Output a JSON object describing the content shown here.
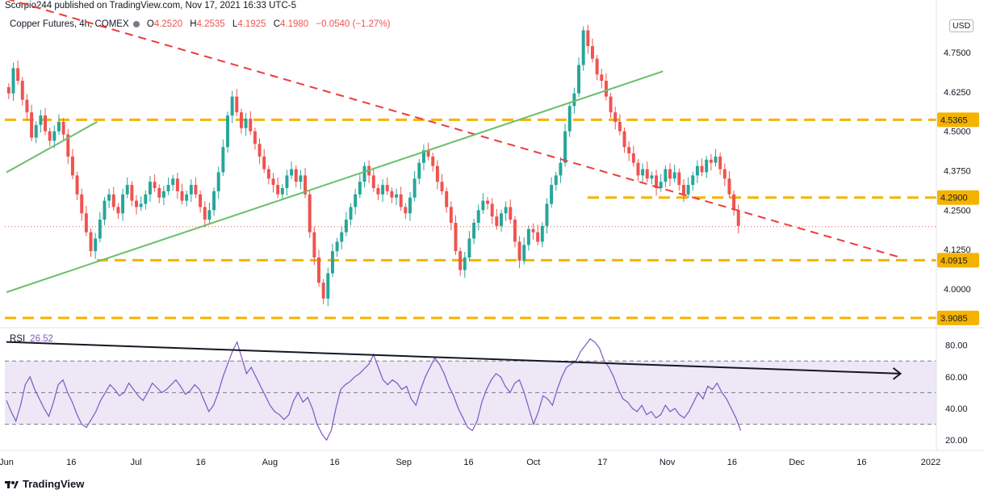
{
  "header": {
    "publisher_line": "Scorpio244 published on TradingView.com, Nov 17, 2021 16:33 UTC-5"
  },
  "legend": {
    "symbol": "Copper Futures, 4h, COMEX",
    "o_label": "O",
    "o_value": "4.2520",
    "h_label": "H",
    "h_value": "4.2535",
    "l_label": "L",
    "l_value": "4.1925",
    "c_label": "C",
    "c_value": "4.1980",
    "change": "−0.0540 (−1.27%)"
  },
  "currency": "USD",
  "rsi_legend": {
    "label": "RSI",
    "value": "26.52"
  },
  "brand": {
    "name": "TradingView"
  },
  "colors": {
    "up": "#26a69a",
    "down": "#ef5350",
    "support": "#f5b300",
    "trend_red": "#ef3b3b",
    "trend_green": "#6abf69",
    "rsi_line": "#7e57c2",
    "rsi_band": "#ede7f6"
  },
  "chart_data": [
    {
      "type": "candlestick",
      "title": "Copper Futures, 4h, COMEX",
      "x_ticks": [
        "Jun",
        "16",
        "Jul",
        "16",
        "Aug",
        "16",
        "Sep",
        "16",
        "Oct",
        "17",
        "Nov",
        "16",
        "Dec",
        "16",
        "2022"
      ],
      "y_ticks": [
        "4.7500",
        "4.6250",
        "4.5000",
        "4.3750",
        "4.2500",
        "4.1250",
        "4.0000"
      ],
      "ylim": [
        3.88,
        4.87
      ],
      "last_price": 4.198,
      "support_levels": [
        {
          "value": 4.5365,
          "label": "4.5365"
        },
        {
          "value": 4.29,
          "label": "4.2900"
        },
        {
          "value": 4.0915,
          "label": "4.0915"
        },
        {
          "value": 3.9085,
          "label": "3.9085"
        }
      ],
      "trendlines": [
        {
          "name": "descending",
          "from": [
            "Jun 1",
            4.92
          ],
          "to": [
            "Dec 25",
            4.1
          ]
        },
        {
          "name": "ascending",
          "from": [
            "Jun 1",
            3.99
          ],
          "to": [
            "Oct 31",
            4.69
          ]
        },
        {
          "name": "early-ascending",
          "from": [
            "Jun 1",
            4.37
          ],
          "to": [
            "Jun 22",
            4.53
          ]
        }
      ],
      "closes_approx": [
        4.62,
        4.7,
        4.66,
        4.6,
        4.56,
        4.48,
        4.52,
        4.55,
        4.5,
        4.47,
        4.5,
        4.53,
        4.49,
        4.42,
        4.36,
        4.3,
        4.24,
        4.18,
        4.12,
        4.16,
        4.22,
        4.28,
        4.3,
        4.26,
        4.24,
        4.3,
        4.33,
        4.28,
        4.26,
        4.27,
        4.3,
        4.34,
        4.32,
        4.29,
        4.31,
        4.33,
        4.35,
        4.31,
        4.28,
        4.3,
        4.33,
        4.3,
        4.26,
        4.22,
        4.25,
        4.31,
        4.37,
        4.45,
        4.55,
        4.61,
        4.56,
        4.51,
        4.54,
        4.5,
        4.46,
        4.42,
        4.38,
        4.35,
        4.33,
        4.3,
        4.32,
        4.36,
        4.38,
        4.34,
        4.36,
        4.3,
        4.18,
        4.1,
        4.02,
        3.97,
        4.05,
        4.12,
        4.15,
        4.18,
        4.22,
        4.26,
        4.3,
        4.34,
        4.39,
        4.36,
        4.32,
        4.3,
        4.33,
        4.31,
        4.29,
        4.3,
        4.26,
        4.24,
        4.29,
        4.35,
        4.4,
        4.44,
        4.42,
        4.39,
        4.34,
        4.31,
        4.26,
        4.21,
        4.12,
        4.06,
        4.1,
        4.16,
        4.21,
        4.25,
        4.28,
        4.27,
        4.23,
        4.2,
        4.24,
        4.26,
        4.22,
        4.15,
        4.09,
        4.14,
        4.19,
        4.18,
        4.15,
        4.2,
        4.27,
        4.33,
        4.36,
        4.4,
        4.5,
        4.58,
        4.62,
        4.71,
        4.82,
        4.77,
        4.73,
        4.68,
        4.66,
        4.61,
        4.56,
        4.53,
        4.5,
        4.45,
        4.43,
        4.4,
        4.36,
        4.38,
        4.35,
        4.36,
        4.32,
        4.34,
        4.38,
        4.35,
        4.37,
        4.33,
        4.3,
        4.33,
        4.36,
        4.39,
        4.37,
        4.41,
        4.4,
        4.42,
        4.38,
        4.35,
        4.3,
        4.25,
        4.2
      ]
    },
    {
      "type": "line",
      "title": "RSI",
      "y_ticks": [
        "80.00",
        "60.00",
        "40.00",
        "20.00"
      ],
      "ylim": [
        15,
        90
      ],
      "band": [
        30,
        70
      ],
      "midline": 50,
      "last_value": 26.52,
      "trendline": {
        "from": [
          "Jun 1",
          82
        ],
        "to": [
          "Dec 25",
          62
        ]
      },
      "values_approx": [
        45,
        38,
        32,
        42,
        55,
        60,
        52,
        46,
        40,
        35,
        44,
        55,
        58,
        50,
        44,
        36,
        30,
        28,
        33,
        38,
        45,
        50,
        55,
        52,
        48,
        50,
        56,
        52,
        48,
        45,
        50,
        56,
        53,
        50,
        52,
        55,
        58,
        54,
        49,
        51,
        55,
        52,
        45,
        38,
        42,
        50,
        60,
        68,
        76,
        82,
        72,
        62,
        66,
        60,
        54,
        48,
        42,
        38,
        36,
        33,
        36,
        45,
        50,
        44,
        47,
        40,
        30,
        24,
        20,
        26,
        40,
        52,
        55,
        57,
        60,
        62,
        65,
        68,
        74,
        66,
        58,
        55,
        58,
        56,
        52,
        54,
        46,
        42,
        52,
        60,
        66,
        72,
        68,
        62,
        54,
        48,
        40,
        34,
        28,
        26,
        32,
        44,
        52,
        58,
        62,
        60,
        54,
        50,
        56,
        58,
        50,
        40,
        30,
        38,
        48,
        46,
        42,
        52,
        60,
        66,
        68,
        70,
        76,
        80,
        84,
        82,
        78,
        70,
        66,
        60,
        52,
        46,
        44,
        40,
        38,
        42,
        36,
        38,
        34,
        36,
        42,
        38,
        40,
        36,
        34,
        38,
        44,
        50,
        46,
        54,
        52,
        56,
        50,
        46,
        40,
        34,
        26
      ]
    }
  ]
}
